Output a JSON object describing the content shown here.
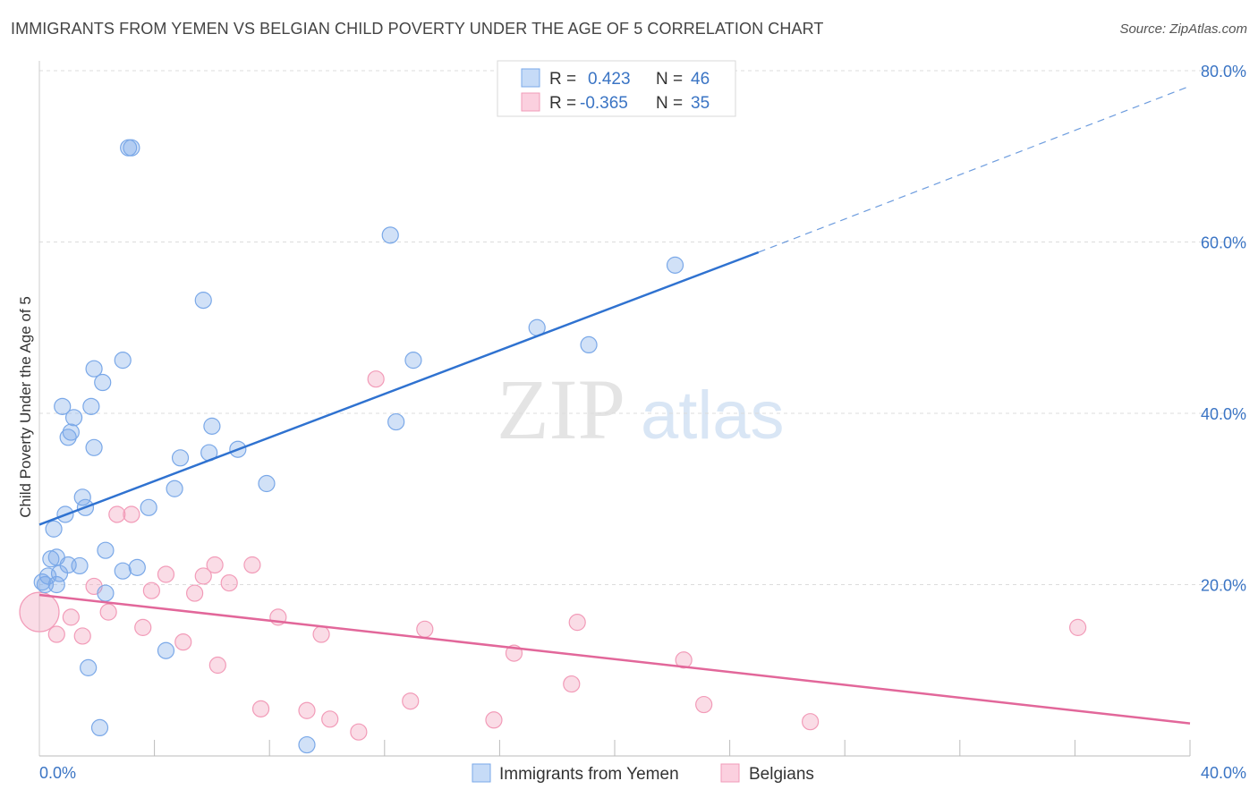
{
  "header": {
    "title": "IMMIGRANTS FROM YEMEN VS BELGIAN CHILD POVERTY UNDER THE AGE OF 5 CORRELATION CHART",
    "source": "Source: ZipAtlas.com"
  },
  "watermark": {
    "zip": "ZIP",
    "atlas": "atlas"
  },
  "chart_data": {
    "type": "scatter",
    "title": "IMMIGRANTS FROM YEMEN VS BELGIAN CHILD POVERTY UNDER THE AGE OF 5 CORRELATION CHART",
    "xlabel": "",
    "ylabel": "Child Poverty Under the Age of 5",
    "xlim": [
      0,
      40
    ],
    "ylim": [
      0,
      80
    ],
    "x_tick_labels": [
      "0.0%",
      "40.0%"
    ],
    "y_ticks": [
      20,
      40,
      60,
      80
    ],
    "y_tick_labels": [
      "20.0%",
      "40.0%",
      "60.0%",
      "80.0%"
    ],
    "grid": true,
    "legend_position": "top-center",
    "colors": {
      "yemen": "#7aa8e8",
      "belgians": "#f29bb8",
      "yemen_line": "#2f72d0",
      "belgians_line": "#e2679a"
    },
    "stats": [
      {
        "r_label": "R =",
        "r": "0.423",
        "n_label": "N =",
        "n": "46"
      },
      {
        "r_label": "R =",
        "r": "-0.365",
        "n_label": "N =",
        "n": "35"
      }
    ],
    "series": [
      {
        "name": "Immigrants from Yemen",
        "points": [
          [
            0.1,
            20.3
          ],
          [
            0.2,
            20.0
          ],
          [
            0.3,
            21.0
          ],
          [
            0.4,
            23.0
          ],
          [
            0.5,
            26.5
          ],
          [
            0.6,
            23.2
          ],
          [
            0.6,
            20.0
          ],
          [
            0.7,
            21.3
          ],
          [
            0.8,
            40.8
          ],
          [
            0.9,
            28.2
          ],
          [
            1.0,
            22.3
          ],
          [
            1.0,
            37.2
          ],
          [
            1.1,
            37.8
          ],
          [
            1.2,
            39.5
          ],
          [
            1.4,
            22.2
          ],
          [
            1.5,
            30.2
          ],
          [
            1.6,
            29.0
          ],
          [
            1.7,
            10.3
          ],
          [
            1.8,
            40.8
          ],
          [
            1.9,
            36.0
          ],
          [
            1.9,
            45.2
          ],
          [
            2.1,
            3.3
          ],
          [
            2.2,
            43.6
          ],
          [
            2.3,
            19.0
          ],
          [
            2.3,
            24.0
          ],
          [
            2.9,
            46.2
          ],
          [
            2.9,
            21.6
          ],
          [
            3.1,
            71.0
          ],
          [
            3.2,
            71.0
          ],
          [
            3.4,
            22.0
          ],
          [
            3.8,
            29.0
          ],
          [
            4.4,
            12.3
          ],
          [
            4.7,
            31.2
          ],
          [
            4.9,
            34.8
          ],
          [
            5.7,
            53.2
          ],
          [
            5.9,
            35.4
          ],
          [
            6.0,
            38.5
          ],
          [
            6.9,
            35.8
          ],
          [
            7.9,
            31.8
          ],
          [
            9.3,
            1.3
          ],
          [
            12.2,
            60.8
          ],
          [
            12.4,
            39.0
          ],
          [
            13.0,
            46.2
          ],
          [
            17.3,
            50.0
          ],
          [
            19.1,
            48.0
          ],
          [
            22.1,
            57.3
          ]
        ],
        "trend": [
          [
            0,
            27.0
          ],
          [
            25,
            58.8
          ]
        ],
        "trend_extension": [
          [
            25,
            58.8
          ],
          [
            40,
            78.2
          ]
        ]
      },
      {
        "name": "Belgians",
        "points": [
          [
            0.0,
            16.8
          ],
          [
            0.6,
            14.2
          ],
          [
            1.1,
            16.2
          ],
          [
            1.5,
            14.0
          ],
          [
            1.9,
            19.8
          ],
          [
            2.4,
            16.8
          ],
          [
            2.7,
            28.2
          ],
          [
            3.2,
            28.2
          ],
          [
            3.6,
            15.0
          ],
          [
            3.9,
            19.3
          ],
          [
            4.4,
            21.2
          ],
          [
            5.0,
            13.3
          ],
          [
            5.4,
            19.0
          ],
          [
            5.7,
            21.0
          ],
          [
            6.1,
            22.3
          ],
          [
            6.2,
            10.6
          ],
          [
            6.6,
            20.2
          ],
          [
            7.4,
            22.3
          ],
          [
            7.7,
            5.5
          ],
          [
            8.3,
            16.2
          ],
          [
            9.3,
            5.3
          ],
          [
            9.8,
            14.2
          ],
          [
            10.1,
            4.3
          ],
          [
            11.1,
            2.8
          ],
          [
            11.7,
            44.0
          ],
          [
            12.9,
            6.4
          ],
          [
            13.4,
            14.8
          ],
          [
            15.8,
            4.2
          ],
          [
            16.5,
            12.0
          ],
          [
            18.5,
            8.4
          ],
          [
            18.7,
            15.6
          ],
          [
            22.4,
            11.2
          ],
          [
            23.1,
            6.0
          ],
          [
            26.8,
            4.0
          ],
          [
            36.1,
            15.0
          ]
        ],
        "trend": [
          [
            0,
            18.8
          ],
          [
            40,
            3.8
          ]
        ]
      }
    ]
  },
  "bottom_legend": [
    "Immigrants from Yemen",
    "Belgians"
  ]
}
